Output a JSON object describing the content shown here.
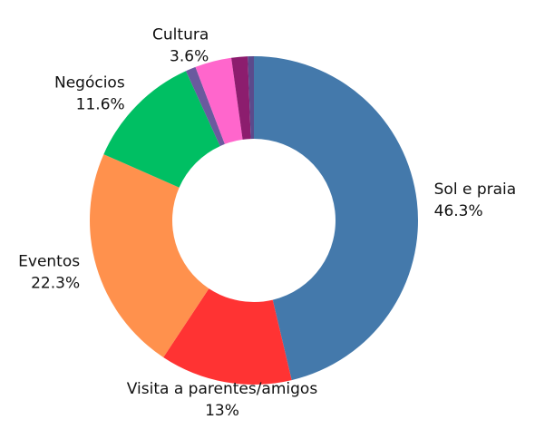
{
  "chart_data": {
    "type": "donut",
    "categories": [
      "Sol e praia",
      "Visita a parentes/amigos",
      "Eventos",
      "Negócios",
      null,
      "Cultura",
      null,
      null
    ],
    "values": [
      46.3,
      13,
      22.3,
      11.6,
      1.0,
      3.6,
      1.6,
      0.6
    ],
    "value_labels": [
      "46.3%",
      "13%",
      "22.3%",
      "11.6%",
      null,
      "3.6%",
      null,
      null
    ],
    "colors": [
      "#4479ab",
      "#ff3333",
      "#ff914d",
      "#00bf63",
      "#6a5a9e",
      "#ff66cc",
      "#8c1d6e",
      "#5b4a8c"
    ]
  }
}
